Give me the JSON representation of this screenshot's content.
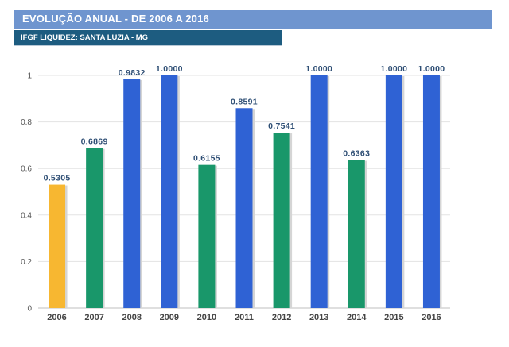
{
  "header": {
    "title": "EVOLUÇÃO ANUAL - DE 2006 A 2016",
    "subtitle": "IFGF LIQUIDEZ: SANTA LUZIA - MG"
  },
  "colors": {
    "header_bg": "#6f95cf",
    "subheader_bg": "#1d5c80",
    "gold": "#f7b731",
    "green": "#19976a",
    "blue": "#2f62d4"
  },
  "chart_data": {
    "type": "bar",
    "categories": [
      "2006",
      "2007",
      "2008",
      "2009",
      "2010",
      "2011",
      "2012",
      "2013",
      "2014",
      "2015",
      "2016"
    ],
    "values": [
      0.5305,
      0.6869,
      0.9832,
      1.0,
      0.6155,
      0.8591,
      0.7541,
      1.0,
      0.6363,
      1.0,
      1.0
    ],
    "value_labels": [
      "0.5305",
      "0.6869",
      "0.9832",
      "1.0000",
      "0.6155",
      "0.8591",
      "0.7541",
      "1.0000",
      "0.6363",
      "1.0000",
      "1.0000"
    ],
    "bar_colors": [
      "#f7b731",
      "#19976a",
      "#2f62d4",
      "#2f62d4",
      "#19976a",
      "#2f62d4",
      "#19976a",
      "#2f62d4",
      "#19976a",
      "#2f62d4",
      "#2f62d4"
    ],
    "y_ticks": [
      "0",
      "0.2",
      "0.4",
      "0.6",
      "0.8",
      "1"
    ],
    "ylim": [
      0,
      1
    ],
    "grid": true,
    "legend": "none"
  }
}
